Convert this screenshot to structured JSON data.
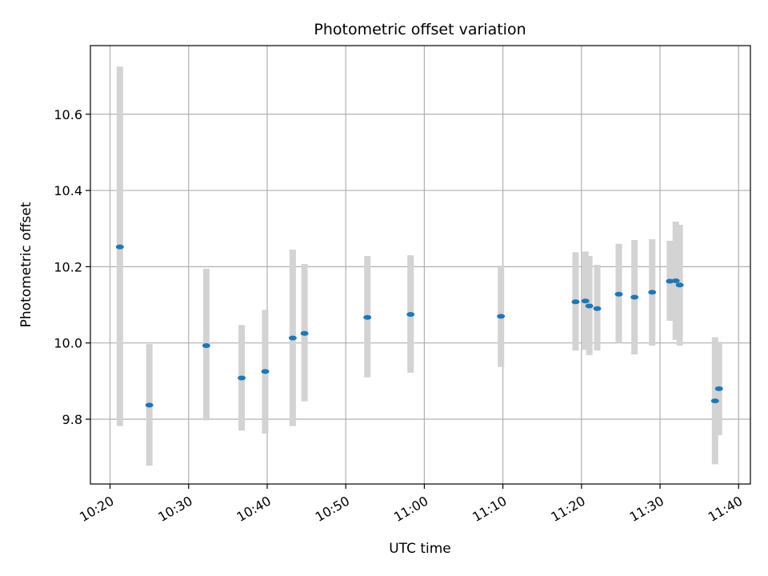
{
  "chart_data": {
    "type": "scatter",
    "title": "Photometric offset variation",
    "xlabel": "UTC time",
    "ylabel": "Photometric offset",
    "x_is_time": true,
    "xlim": [
      "10:17:30",
      "11:41:30"
    ],
    "ylim": [
      9.63,
      10.78
    ],
    "x_ticks": [
      "10:20",
      "10:30",
      "10:40",
      "10:50",
      "11:00",
      "11:10",
      "11:20",
      "11:30",
      "11:40"
    ],
    "y_ticks": [
      "9.8",
      "10.0",
      "10.2",
      "10.4",
      "10.6"
    ],
    "grid": true,
    "colors": {
      "point": "#1f77b4",
      "error_bar": "#d3d3d3",
      "grid": "#b0b0b0"
    },
    "series": [
      {
        "points": [
          {
            "x": "10:21:15",
            "y": 10.252,
            "yerr_low": 9.782,
            "yerr_high": 10.725
          },
          {
            "x": "10:25:00",
            "y": 9.837,
            "yerr_low": 9.678,
            "yerr_high": 9.997
          },
          {
            "x": "10:32:15",
            "y": 9.993,
            "yerr_low": 9.797,
            "yerr_high": 10.195
          },
          {
            "x": "10:36:45",
            "y": 9.908,
            "yerr_low": 9.77,
            "yerr_high": 10.047
          },
          {
            "x": "10:39:45",
            "y": 9.925,
            "yerr_low": 9.762,
            "yerr_high": 10.087
          },
          {
            "x": "10:43:15",
            "y": 10.013,
            "yerr_low": 9.782,
            "yerr_high": 10.245
          },
          {
            "x": "10:44:45",
            "y": 10.025,
            "yerr_low": 9.847,
            "yerr_high": 10.207
          },
          {
            "x": "10:52:45",
            "y": 10.067,
            "yerr_low": 9.91,
            "yerr_high": 10.228
          },
          {
            "x": "10:58:15",
            "y": 10.075,
            "yerr_low": 9.922,
            "yerr_high": 10.23
          },
          {
            "x": "11:09:45",
            "y": 10.07,
            "yerr_low": 9.937,
            "yerr_high": 10.203
          },
          {
            "x": "11:19:15",
            "y": 10.108,
            "yerr_low": 9.98,
            "yerr_high": 10.238
          },
          {
            "x": "11:20:30",
            "y": 10.11,
            "yerr_low": 9.982,
            "yerr_high": 10.24
          },
          {
            "x": "11:21:00",
            "y": 10.097,
            "yerr_low": 9.968,
            "yerr_high": 10.228
          },
          {
            "x": "11:22:00",
            "y": 10.09,
            "yerr_low": 9.98,
            "yerr_high": 10.205
          },
          {
            "x": "11:24:45",
            "y": 10.128,
            "yerr_low": 10.0,
            "yerr_high": 10.26
          },
          {
            "x": "11:26:45",
            "y": 10.12,
            "yerr_low": 9.97,
            "yerr_high": 10.27
          },
          {
            "x": "11:29:00",
            "y": 10.133,
            "yerr_low": 9.993,
            "yerr_high": 10.272
          },
          {
            "x": "11:31:15",
            "y": 10.162,
            "yerr_low": 10.058,
            "yerr_high": 10.268
          },
          {
            "x": "11:32:00",
            "y": 10.163,
            "yerr_low": 10.008,
            "yerr_high": 10.318
          },
          {
            "x": "11:32:30",
            "y": 10.152,
            "yerr_low": 9.993,
            "yerr_high": 10.31
          },
          {
            "x": "11:37:00",
            "y": 9.848,
            "yerr_low": 9.682,
            "yerr_high": 10.015
          },
          {
            "x": "11:37:30",
            "y": 9.88,
            "yerr_low": 9.758,
            "yerr_high": 10.003
          }
        ]
      }
    ]
  }
}
